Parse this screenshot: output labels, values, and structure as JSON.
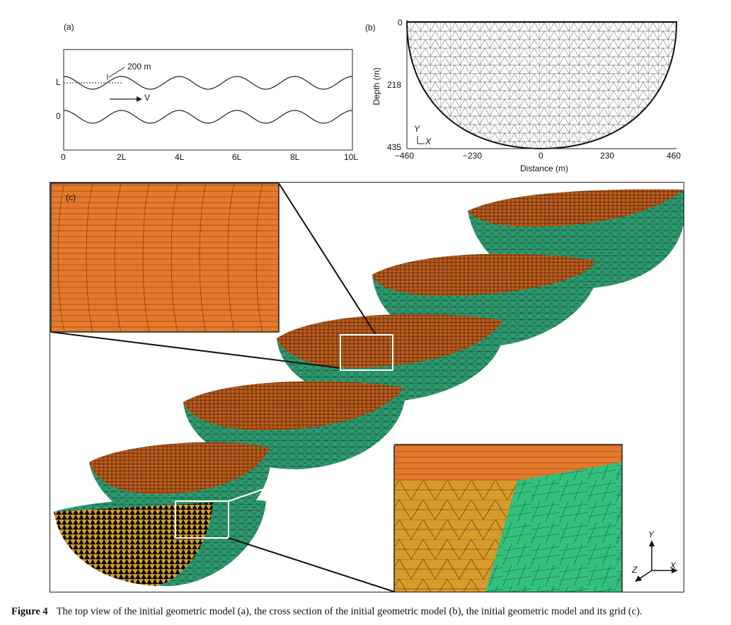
{
  "panel_a": {
    "label": "(a)",
    "width_annotation": "200 m",
    "velocity_label": "V",
    "y_labels": [
      "L",
      "0"
    ],
    "x_ticks": [
      "0",
      "2L",
      "4L",
      "6L",
      "8L",
      "10L"
    ]
  },
  "panel_b": {
    "label": "(b)",
    "ylabel": "Depth (m)",
    "xlabel": "Distance (m)",
    "y_ticks": [
      "0",
      "218",
      "435"
    ],
    "x_ticks": [
      "−460",
      "−230",
      "0",
      "230",
      "460"
    ],
    "axis_y": "Y",
    "axis_x": "X"
  },
  "panel_c": {
    "label": "(c)",
    "axis_y": "Y",
    "axis_x": "X",
    "axis_z": "Z",
    "colors": {
      "surface": "#e47a2a",
      "side": "#2e9d70",
      "section": "#d8a22f"
    }
  },
  "caption": {
    "figure": "Figure 4",
    "text": "The top view of the initial geometric model (a), the cross section of the initial geometric model (b), the initial geometric model and its grid (c)."
  }
}
